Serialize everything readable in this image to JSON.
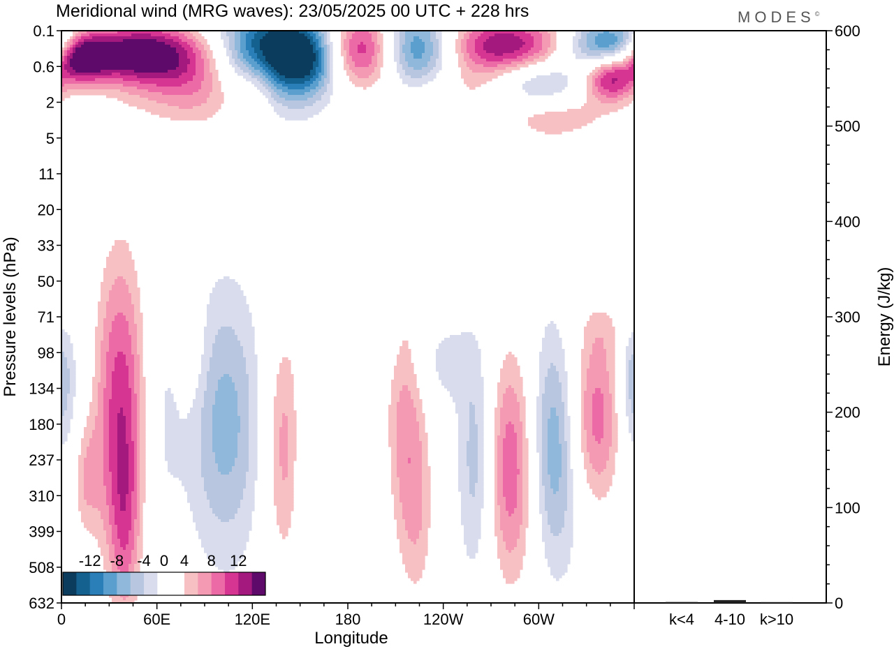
{
  "title": "Meridional wind (MRG waves):  23/05/2025  00 UTC  + 228 hrs",
  "brand": "MODES",
  "brand_mark": "©",
  "chart_data": [
    {
      "type": "heatmap",
      "title": "Meridional wind (MRG waves):  23/05/2025  00 UTC  + 228 hrs",
      "xlabel": "Longitude",
      "ylabel": "Pressure levels (hPa)",
      "x_ticks": [
        "0",
        "60E",
        "120E",
        "180",
        "120W",
        "60W"
      ],
      "x_ticks_deg": [
        0,
        60,
        120,
        180,
        240,
        300
      ],
      "xlim_deg": [
        0,
        360
      ],
      "y_levels": [
        "0.1",
        "0.6",
        "2",
        "5",
        "11",
        "20",
        "33",
        "50",
        "71",
        "98",
        "134",
        "180",
        "237",
        "310",
        "399",
        "508",
        "632"
      ],
      "colorbar": {
        "labels": [
          "-12",
          "-8",
          "-4",
          "0",
          "4",
          "8",
          "12"
        ],
        "label_values": [
          -12,
          -8,
          -4,
          0,
          4,
          8,
          12
        ],
        "bins": [
          -14,
          -12,
          -10,
          -8,
          -6,
          -4,
          -2,
          2,
          4,
          6,
          8,
          10,
          12,
          14
        ],
        "colors": [
          "#0b3c5d",
          "#14608f",
          "#2a7fb8",
          "#5a9fcd",
          "#8fb8db",
          "#b9c6e0",
          "#d8dcec",
          "#ffffff",
          "#ffffff",
          "#f7c1c4",
          "#f49ab3",
          "#ec6aa5",
          "#d63592",
          "#a4197d",
          "#5e0a6a"
        ]
      },
      "blobs": [
        {
          "lon": 12,
          "lev": 0.7,
          "lw": 12,
          "lh": 0.5,
          "v": 15
        },
        {
          "lon": 48,
          "lev": 0.6,
          "lw": 28,
          "lh": 0.6,
          "v": 15
        },
        {
          "lon": 95,
          "lev": 1.5,
          "lw": 38,
          "lh": 0.9,
          "v": 9
        },
        {
          "lon": 122,
          "lev": 1.6,
          "lw": 10,
          "lh": 0.6,
          "v": 5
        },
        {
          "lon": 120,
          "lev": 0.9,
          "lw": 18,
          "lh": 0.9,
          "v": -6
        },
        {
          "lon": 135,
          "lev": 0.7,
          "lw": 24,
          "lh": 1.1,
          "v": -14
        },
        {
          "lon": 155,
          "lev": 0.8,
          "lw": 14,
          "lh": 0.7,
          "v": -10
        },
        {
          "lon": 190,
          "lev": 0.5,
          "lw": 18,
          "lh": 0.8,
          "v": 14
        },
        {
          "lon": 222,
          "lev": 0.5,
          "lw": 18,
          "lh": 0.8,
          "v": -14
        },
        {
          "lon": 278,
          "lev": 0.4,
          "lw": 30,
          "lh": 0.6,
          "v": 14
        },
        {
          "lon": 345,
          "lev": 0.4,
          "lw": 20,
          "lh": 0.5,
          "v": -14
        },
        {
          "lon": 345,
          "lev": 1.3,
          "lw": 12,
          "lh": 0.5,
          "v": 13
        },
        {
          "lon": 300,
          "lev": 1.5,
          "lw": 20,
          "lh": 0.5,
          "v": -7
        },
        {
          "lon": 250,
          "lev": 1.6,
          "lw": 25,
          "lh": 0.5,
          "v": 4
        },
        {
          "lon": 310,
          "lev": 2.4,
          "lw": 25,
          "lh": 0.5,
          "v": 6
        },
        {
          "lon": 30,
          "lev": 4.1,
          "lw": 14,
          "lh": 0.25,
          "v": -1.5
        },
        {
          "lon": 70,
          "lev": 4.1,
          "lw": 15,
          "lh": 0.3,
          "v": 2
        },
        {
          "lon": 285,
          "lev": 3.3,
          "lw": 22,
          "lh": 0.25,
          "v": 2
        },
        {
          "lon": 240,
          "lev": 7.0,
          "lw": 14,
          "lh": 0.4,
          "v": 2.5
        },
        {
          "lon": 280,
          "lev": 6.0,
          "lw": 12,
          "lh": 0.25,
          "v": -1.8
        },
        {
          "lon": 5,
          "lev": 11.0,
          "lw": 8,
          "lh": 2.2,
          "v": -3
        },
        {
          "lon": 14,
          "lev": 12.5,
          "lw": 7,
          "lh": 1.3,
          "v": 6
        },
        {
          "lon": 37,
          "lev": 10.5,
          "lw": 12,
          "lh": 3.3,
          "v": 11
        },
        {
          "lon": 40,
          "lev": 14.0,
          "lw": 7,
          "lh": 2.0,
          "v": 5
        },
        {
          "lon": 63,
          "lev": 10.8,
          "lw": 9,
          "lh": 2.6,
          "v": -2.5
        },
        {
          "lon": 82,
          "lev": 9.0,
          "lw": 7,
          "lh": 1.2,
          "v": 2.5
        },
        {
          "lon": 103,
          "lev": 11.0,
          "lw": 16,
          "lh": 2.6,
          "v": -7
        },
        {
          "lon": 140,
          "lev": 11.6,
          "lw": 9,
          "lh": 2.6,
          "v": 7
        },
        {
          "lon": 152,
          "lev": 12.0,
          "lw": 5,
          "lh": 2.0,
          "v": -2
        },
        {
          "lon": 170,
          "lev": 9.5,
          "lw": 9,
          "lh": 1.4,
          "v": 4
        },
        {
          "lon": 193,
          "lev": 8.6,
          "lw": 12,
          "lh": 0.8,
          "v": -2
        },
        {
          "lon": 190,
          "lev": 13.0,
          "lw": 10,
          "lh": 1.8,
          "v": -2
        },
        {
          "lon": 216,
          "lev": 11.0,
          "lw": 10,
          "lh": 2.8,
          "v": 7
        },
        {
          "lon": 238,
          "lev": 9.3,
          "lw": 14,
          "lh": 0.9,
          "v": -3
        },
        {
          "lon": 225,
          "lev": 13.8,
          "lw": 8,
          "lh": 2.0,
          "v": 3.5
        },
        {
          "lon": 261,
          "lev": 12.0,
          "lw": 8,
          "lh": 2.3,
          "v": -6
        },
        {
          "lon": 283,
          "lev": 12.2,
          "lw": 12,
          "lh": 2.5,
          "v": 10
        },
        {
          "lon": 310,
          "lev": 11.6,
          "lw": 12,
          "lh": 2.3,
          "v": -9
        },
        {
          "lon": 335,
          "lev": 10.8,
          "lw": 13,
          "lh": 1.9,
          "v": 9.5
        },
        {
          "lon": 358,
          "lev": 9.7,
          "lw": 6,
          "lh": 1.3,
          "v": -5
        },
        {
          "lon": 345,
          "lev": 8.3,
          "lw": 16,
          "lh": 0.6,
          "v": 2
        }
      ]
    },
    {
      "type": "bar",
      "ylabel": "Energy (J/kg)",
      "categories": [
        "k<4",
        "4-10",
        "k>10"
      ],
      "values": [
        1,
        3,
        0.5
      ],
      "ylim": [
        0,
        600
      ],
      "y_ticks": [
        0,
        100,
        200,
        300,
        400,
        500,
        600
      ]
    }
  ]
}
